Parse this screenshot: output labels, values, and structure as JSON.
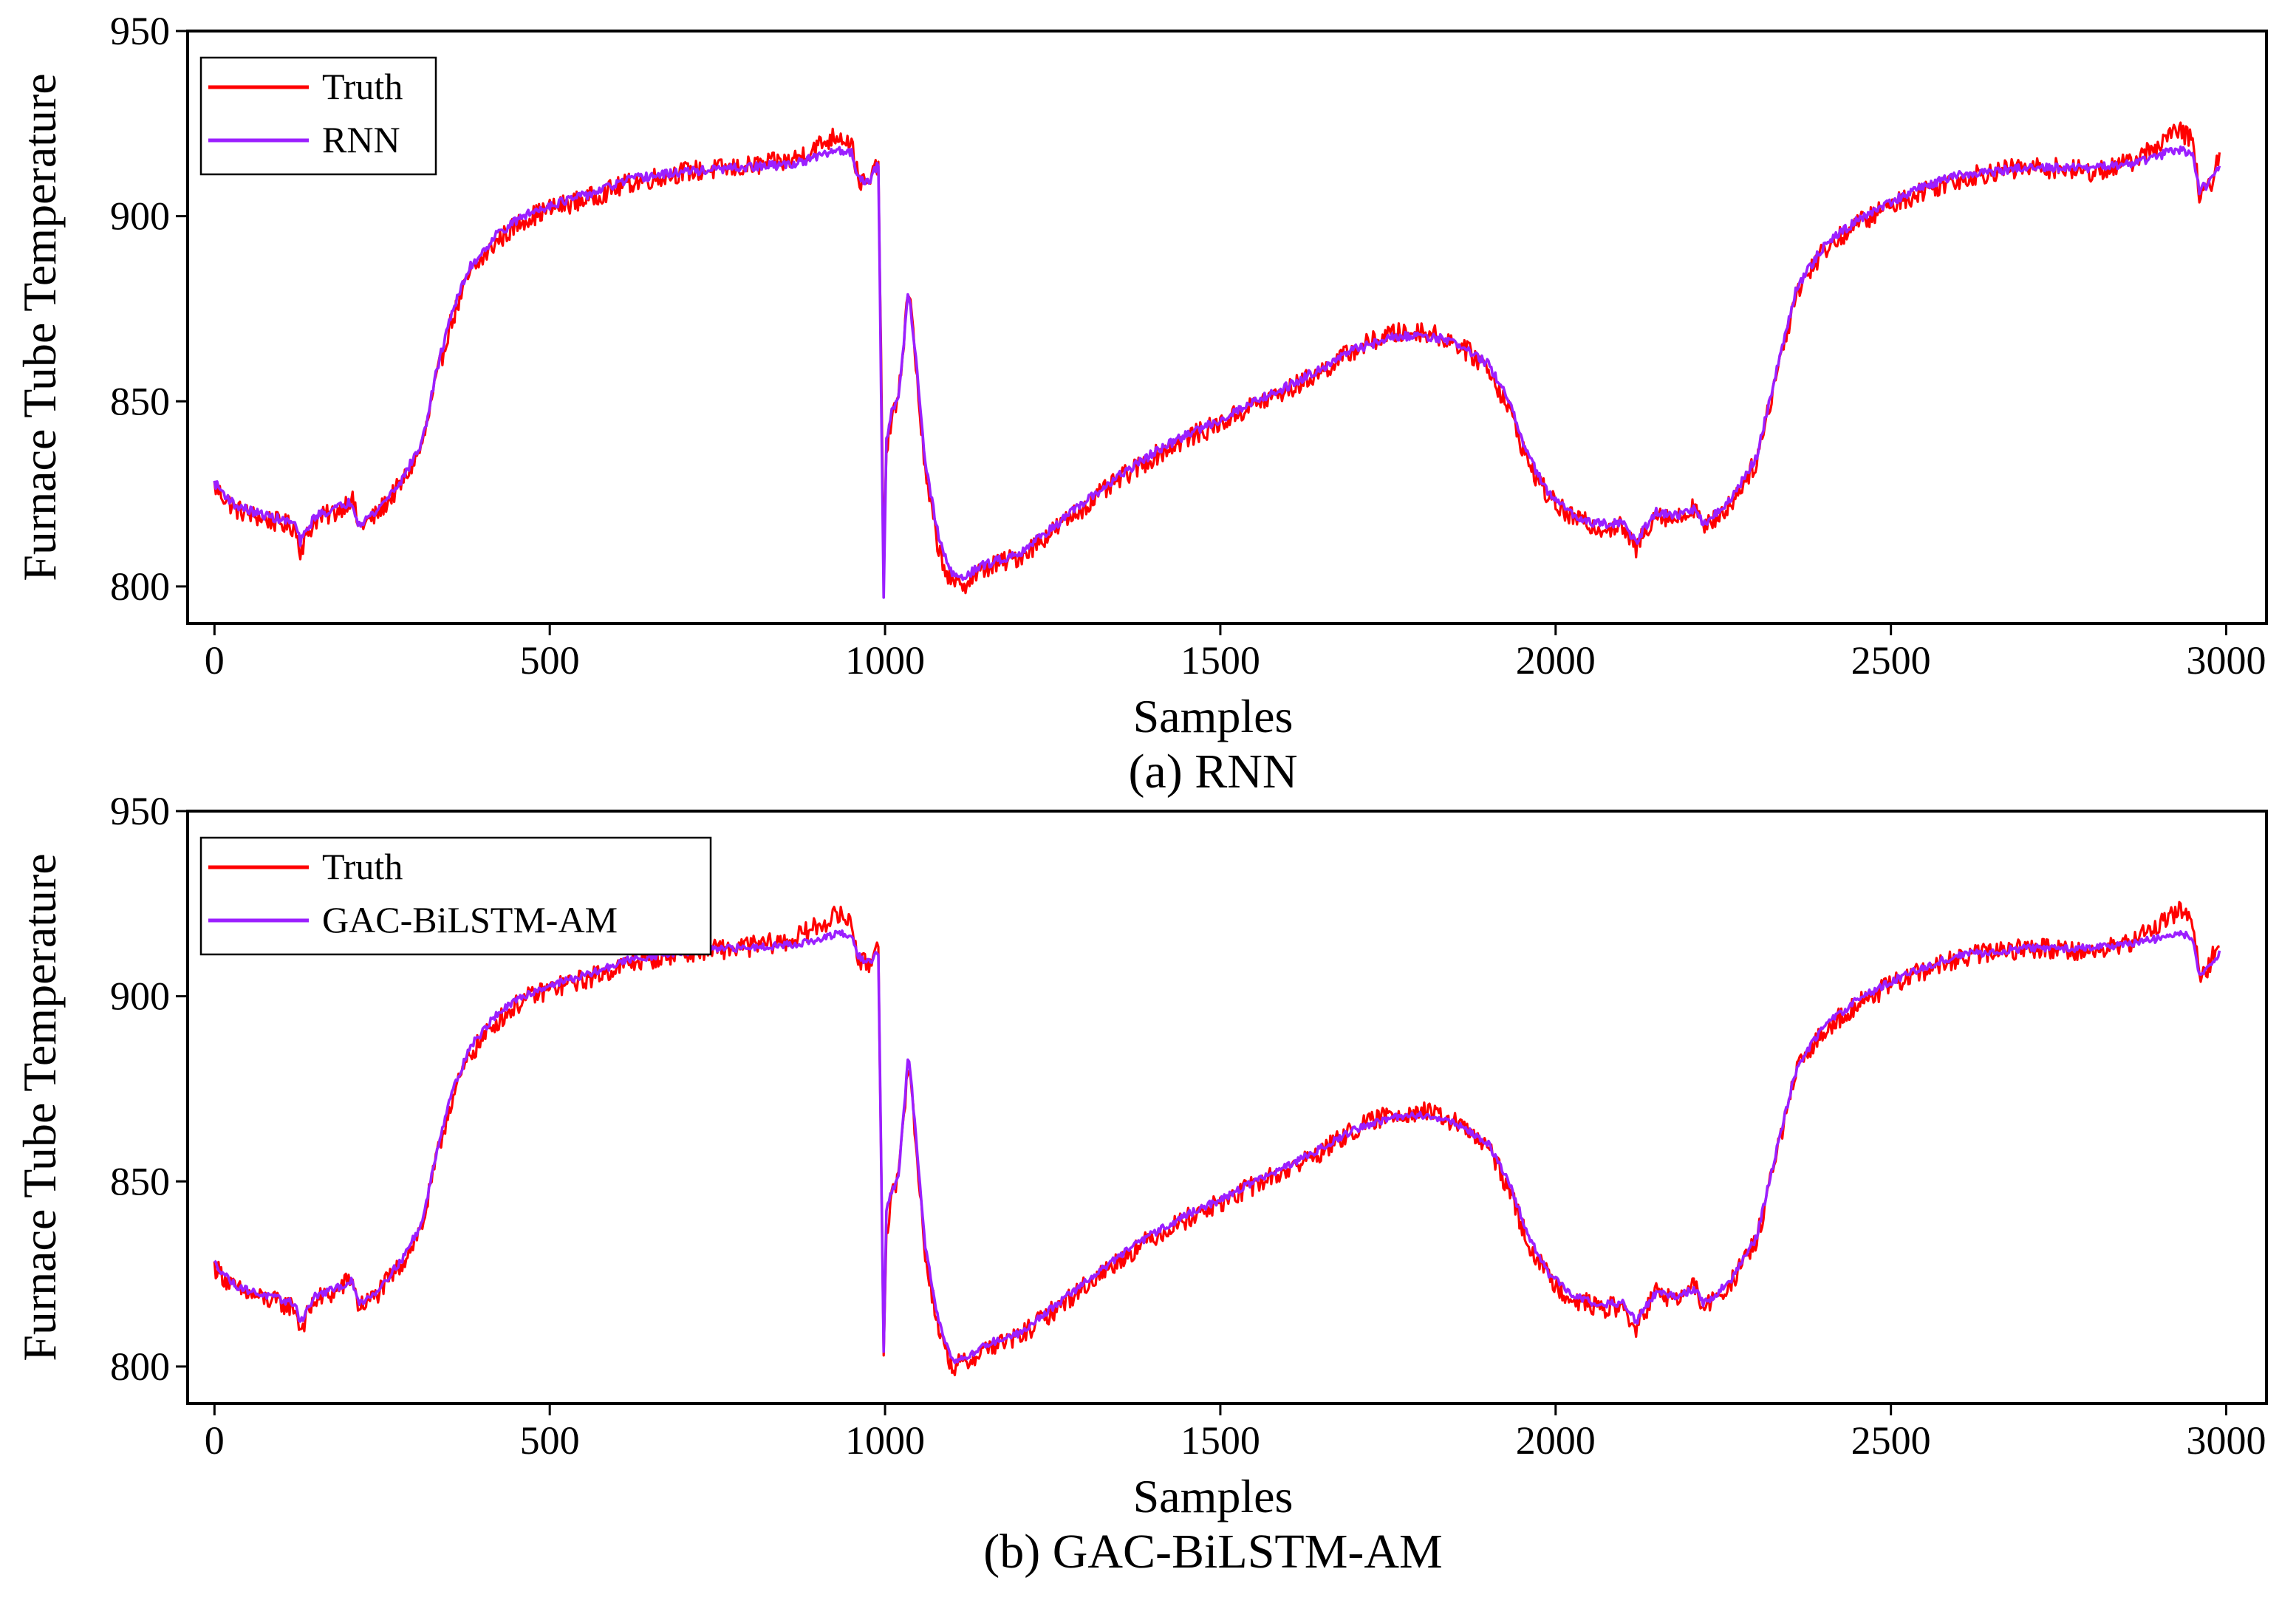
{
  "figure_title": "",
  "chart_data": [
    {
      "type": "line",
      "caption": "(a) RNN",
      "xlabel": "Samples",
      "ylabel": "Furnace Tube Temperature",
      "xlim": [
        -40,
        3060
      ],
      "ylim": [
        790,
        950
      ],
      "xticks": [
        0,
        500,
        1000,
        1500,
        2000,
        2500,
        3000
      ],
      "yticks": [
        800,
        850,
        900,
        950
      ],
      "xtick_labels": [
        "0",
        "500",
        "1000",
        "1500",
        "2000",
        "2500",
        "3000"
      ],
      "ytick_labels": [
        "800",
        "850",
        "900",
        "950"
      ],
      "legend_position": "top-left",
      "grid": false,
      "series": [
        {
          "name": "Truth",
          "color": "#ff0000",
          "noise": 2.8,
          "x": [
            0,
            30,
            60,
            100,
            120,
            128,
            150,
            180,
            205,
            215,
            240,
            280,
            310,
            330,
            350,
            380,
            420,
            460,
            500,
            560,
            620,
            700,
            780,
            860,
            900,
            930,
            950,
            960,
            975,
            990,
            998,
            1002,
            1010,
            1020,
            1035,
            1045,
            1060,
            1080,
            1100,
            1120,
            1150,
            1200,
            1250,
            1300,
            1350,
            1400,
            1450,
            1500,
            1550,
            1600,
            1650,
            1700,
            1750,
            1800,
            1850,
            1900,
            1930,
            1960,
            1990,
            2020,
            2060,
            2100,
            2120,
            2130,
            2150,
            2180,
            2210,
            2220,
            2235,
            2260,
            2300,
            2330,
            2360,
            2400,
            2450,
            2500,
            2550,
            2600,
            2650,
            2700,
            2750,
            2800,
            2850,
            2880,
            2910,
            2930,
            2950,
            2960,
            2975,
            2990
          ],
          "y": [
            827,
            821,
            819,
            817,
            816,
            810,
            818,
            820,
            824,
            816,
            819,
            828,
            838,
            855,
            870,
            884,
            893,
            899,
            902,
            905,
            909,
            912,
            913,
            915,
            919,
            922,
            920,
            910,
            908,
            915,
            808,
            836,
            846,
            850,
            882,
            862,
            830,
            810,
            800,
            801,
            805,
            808,
            815,
            822,
            829,
            835,
            840,
            844,
            849,
            853,
            858,
            864,
            868,
            869,
            866,
            859,
            848,
            833,
            824,
            819,
            816,
            816,
            810,
            814,
            820,
            818,
            822,
            815,
            818,
            822,
            834,
            858,
            880,
            891,
            898,
            903,
            907,
            910,
            912,
            913,
            913,
            912,
            914,
            917,
            921,
            923,
            921,
            905,
            908,
            916
          ]
        },
        {
          "name": "RNN",
          "color": "#9b1fff",
          "noise": 1.2,
          "x": [
            0,
            30,
            60,
            100,
            120,
            128,
            150,
            180,
            205,
            215,
            240,
            280,
            310,
            330,
            350,
            380,
            420,
            460,
            500,
            560,
            620,
            700,
            780,
            860,
            900,
            930,
            950,
            960,
            975,
            990,
            998,
            1002,
            1010,
            1020,
            1035,
            1045,
            1060,
            1080,
            1100,
            1120,
            1150,
            1200,
            1250,
            1300,
            1350,
            1400,
            1450,
            1500,
            1550,
            1600,
            1650,
            1700,
            1750,
            1800,
            1850,
            1900,
            1930,
            1960,
            1990,
            2020,
            2060,
            2100,
            2120,
            2130,
            2150,
            2180,
            2210,
            2220,
            2235,
            2260,
            2300,
            2330,
            2360,
            2400,
            2450,
            2500,
            2550,
            2600,
            2650,
            2700,
            2750,
            2800,
            2850,
            2880,
            2910,
            2930,
            2950,
            2960,
            2975,
            2990
          ],
          "y": [
            828,
            822,
            820,
            818,
            817,
            812,
            819,
            821,
            823,
            817,
            820,
            829,
            839,
            857,
            872,
            886,
            895,
            900,
            903,
            906,
            910,
            912,
            913,
            914,
            916,
            918,
            917,
            911,
            909,
            914,
            797,
            840,
            847,
            851,
            880,
            864,
            833,
            813,
            803,
            803,
            806,
            809,
            816,
            823,
            830,
            836,
            841,
            845,
            850,
            854,
            859,
            864,
            867,
            868,
            866,
            860,
            850,
            835,
            825,
            820,
            817,
            817,
            812,
            815,
            820,
            819,
            821,
            817,
            819,
            823,
            835,
            859,
            881,
            892,
            899,
            904,
            908,
            911,
            912,
            913,
            913,
            913,
            914,
            915,
            917,
            918,
            917,
            907,
            909,
            914
          ]
        }
      ]
    },
    {
      "type": "line",
      "caption": "(b) GAC-BiLSTM-AM",
      "xlabel": "Samples",
      "ylabel": "Furnace Tube Temperature",
      "xlim": [
        -40,
        3060
      ],
      "ylim": [
        790,
        950
      ],
      "xticks": [
        0,
        500,
        1000,
        1500,
        2000,
        2500,
        3000
      ],
      "yticks": [
        800,
        850,
        900,
        950
      ],
      "xtick_labels": [
        "0",
        "500",
        "1000",
        "1500",
        "2000",
        "2500",
        "3000"
      ],
      "ytick_labels": [
        "800",
        "850",
        "900",
        "950"
      ],
      "legend_position": "top-left",
      "grid": false,
      "series": [
        {
          "name": "Truth",
          "color": "#ff0000",
          "noise": 2.8,
          "x": [
            0,
            30,
            60,
            100,
            120,
            128,
            150,
            180,
            205,
            215,
            240,
            280,
            310,
            330,
            350,
            380,
            420,
            460,
            500,
            560,
            620,
            700,
            780,
            860,
            900,
            930,
            950,
            960,
            975,
            990,
            998,
            1002,
            1010,
            1020,
            1035,
            1045,
            1060,
            1080,
            1100,
            1120,
            1150,
            1200,
            1250,
            1300,
            1350,
            1400,
            1450,
            1500,
            1550,
            1600,
            1650,
            1700,
            1750,
            1800,
            1850,
            1900,
            1930,
            1960,
            1990,
            2020,
            2060,
            2100,
            2120,
            2130,
            2150,
            2180,
            2210,
            2220,
            2235,
            2260,
            2300,
            2330,
            2360,
            2400,
            2450,
            2500,
            2550,
            2600,
            2650,
            2700,
            2750,
            2800,
            2850,
            2880,
            2910,
            2930,
            2950,
            2960,
            2975,
            2990
          ],
          "y": [
            827,
            821,
            819,
            817,
            816,
            810,
            818,
            820,
            824,
            816,
            819,
            828,
            838,
            855,
            870,
            884,
            893,
            899,
            902,
            905,
            909,
            912,
            913,
            915,
            919,
            922,
            920,
            910,
            908,
            915,
            803,
            836,
            846,
            850,
            884,
            862,
            830,
            810,
            800,
            801,
            805,
            808,
            815,
            822,
            829,
            835,
            840,
            844,
            849,
            853,
            858,
            864,
            868,
            869,
            866,
            859,
            848,
            833,
            824,
            819,
            816,
            816,
            810,
            814,
            820,
            818,
            822,
            815,
            818,
            822,
            834,
            858,
            880,
            891,
            898,
            903,
            907,
            910,
            912,
            913,
            913,
            912,
            914,
            917,
            921,
            923,
            921,
            905,
            908,
            916
          ]
        },
        {
          "name": "GAC-BiLSTM-AM",
          "color": "#9b1fff",
          "noise": 1.0,
          "x": [
            0,
            30,
            60,
            100,
            120,
            128,
            150,
            180,
            205,
            215,
            240,
            280,
            310,
            330,
            350,
            380,
            420,
            460,
            500,
            560,
            620,
            700,
            780,
            860,
            900,
            930,
            950,
            960,
            975,
            990,
            998,
            1002,
            1010,
            1020,
            1035,
            1045,
            1060,
            1080,
            1100,
            1120,
            1150,
            1200,
            1250,
            1300,
            1350,
            1400,
            1450,
            1500,
            1550,
            1600,
            1650,
            1700,
            1750,
            1800,
            1850,
            1900,
            1930,
            1960,
            1990,
            2020,
            2060,
            2100,
            2120,
            2130,
            2150,
            2180,
            2210,
            2220,
            2235,
            2260,
            2300,
            2330,
            2360,
            2400,
            2450,
            2500,
            2550,
            2600,
            2650,
            2700,
            2750,
            2800,
            2850,
            2880,
            2910,
            2930,
            2950,
            2960,
            2975,
            2990
          ],
          "y": [
            828,
            822,
            820,
            818,
            817,
            812,
            819,
            821,
            823,
            817,
            820,
            829,
            839,
            857,
            872,
            886,
            895,
            900,
            903,
            906,
            910,
            912,
            913,
            914,
            915,
            917,
            916,
            911,
            909,
            912,
            804,
            842,
            847,
            851,
            885,
            864,
            833,
            812,
            802,
            802,
            806,
            809,
            816,
            823,
            830,
            836,
            841,
            845,
            850,
            854,
            859,
            864,
            867,
            868,
            866,
            860,
            850,
            835,
            825,
            820,
            817,
            817,
            812,
            815,
            820,
            819,
            821,
            817,
            819,
            823,
            835,
            859,
            881,
            892,
            899,
            904,
            908,
            911,
            912,
            913,
            913,
            913,
            914,
            915,
            916,
            917,
            916,
            906,
            908,
            912
          ]
        }
      ]
    }
  ]
}
